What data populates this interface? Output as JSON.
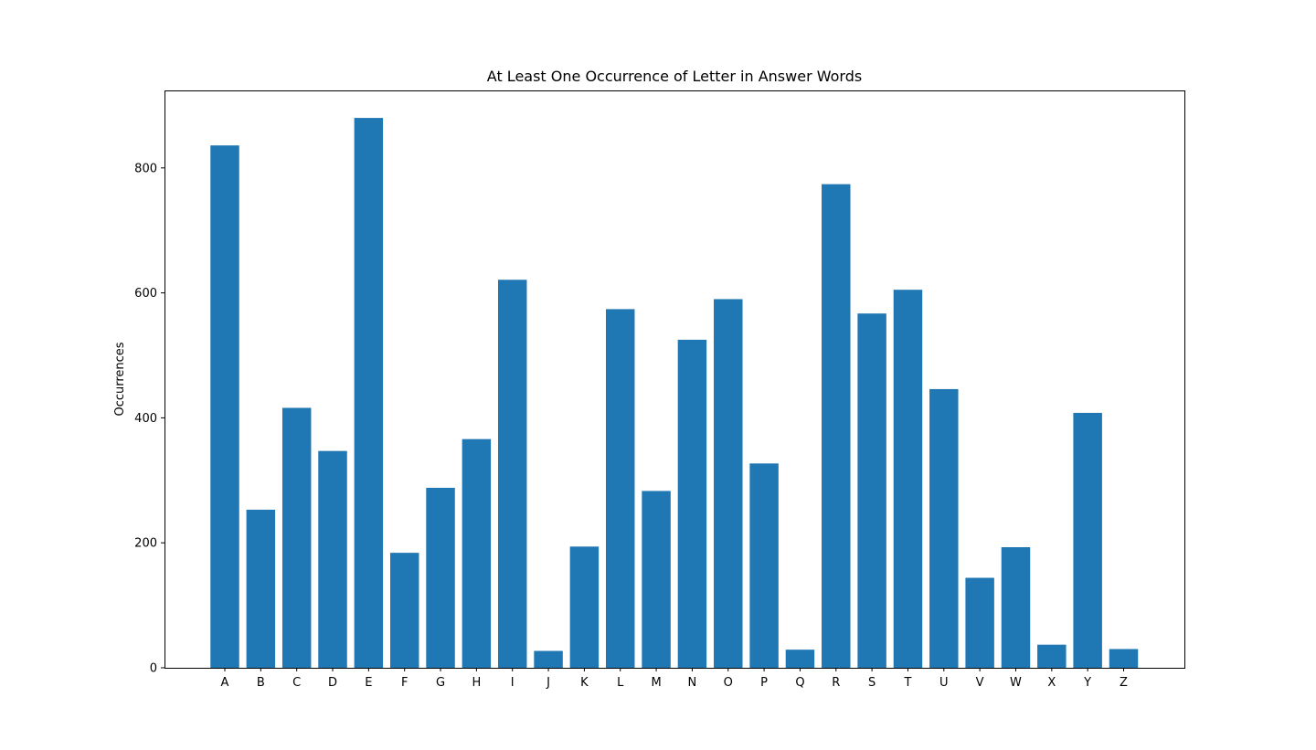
{
  "chart_data": {
    "type": "bar",
    "title": "At Least One Occurrence of Letter in Answer Words",
    "xlabel": "",
    "ylabel": "Occurrences",
    "categories": [
      "A",
      "B",
      "C",
      "D",
      "E",
      "F",
      "G",
      "H",
      "I",
      "J",
      "K",
      "L",
      "M",
      "N",
      "O",
      "P",
      "Q",
      "R",
      "S",
      "T",
      "U",
      "V",
      "W",
      "X",
      "Y",
      "Z"
    ],
    "values": [
      836,
      253,
      416,
      347,
      880,
      184,
      288,
      366,
      621,
      27,
      194,
      574,
      283,
      525,
      590,
      327,
      29,
      774,
      567,
      605,
      446,
      144,
      193,
      37,
      408,
      30
    ],
    "ylim": [
      0,
      924
    ],
    "yticks": [
      0,
      200,
      400,
      600,
      800
    ],
    "grid": false,
    "colors": {
      "bar": "#1f77b4",
      "axes": "#000000",
      "background": "#ffffff"
    }
  }
}
